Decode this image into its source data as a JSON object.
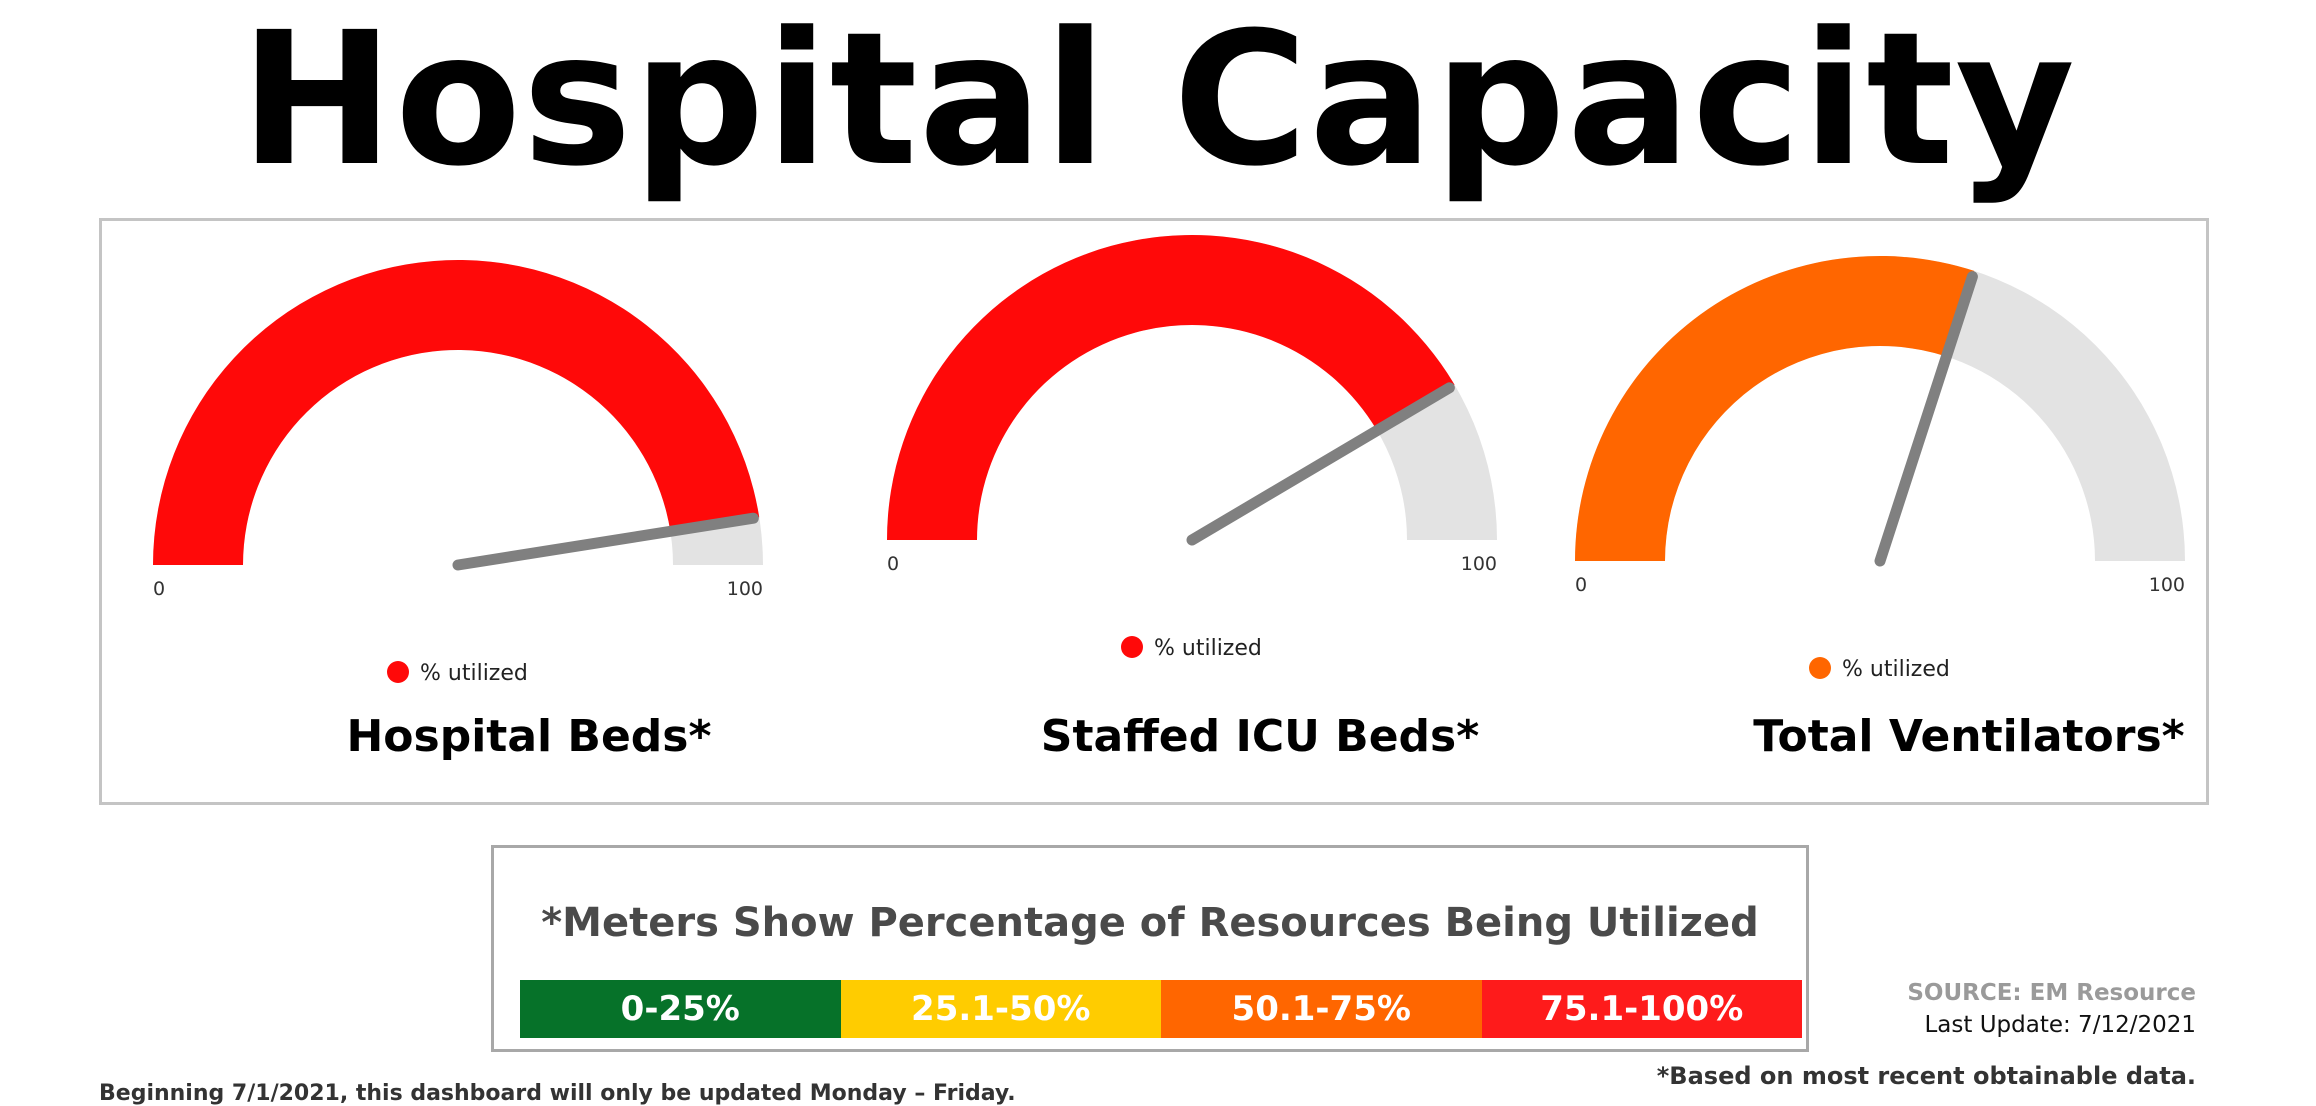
{
  "page": {
    "title": "Hospital Capacity"
  },
  "chart_data": [
    {
      "type": "gauge",
      "title": "Hospital Beds*",
      "series": [
        {
          "name": "% utilized",
          "value": 95
        }
      ],
      "range": [
        0,
        100
      ],
      "tick_labels": [
        "0",
        "100"
      ],
      "color": "#ff0909"
    },
    {
      "type": "gauge",
      "title": "Staffed ICU Beds*",
      "series": [
        {
          "name": "% utilized",
          "value": 83
        }
      ],
      "range": [
        0,
        100
      ],
      "tick_labels": [
        "0",
        "100"
      ],
      "color": "#ff0909"
    },
    {
      "type": "gauge",
      "title": "Total Ventilators*",
      "series": [
        {
          "name": "% utilized",
          "value": 60
        }
      ],
      "range": [
        0,
        100
      ],
      "tick_labels": [
        "0",
        "100"
      ],
      "color": "#ff6600"
    }
  ],
  "legend": {
    "title": "*Meters Show Percentage of Resources Being Utilized",
    "ranges": [
      {
        "label": "0-25%",
        "color": "#067229"
      },
      {
        "label": "25.1-50%",
        "color": "#ffcc00"
      },
      {
        "label": "50.1-75%",
        "color": "#ff6600"
      },
      {
        "label": "75.1-100%",
        "color": "#fe1b1b"
      }
    ]
  },
  "colors": {
    "track": "#e3e3e3",
    "needle": "#808080"
  },
  "footer": {
    "source": "SOURCE: EM Resource",
    "last_update": "Last Update: 7/12/2021",
    "note": "*Based on most recent obtainable data.",
    "cutoff_line": "Beginning 7/1/2021, this dashboard will only be updated Monday – Friday."
  }
}
